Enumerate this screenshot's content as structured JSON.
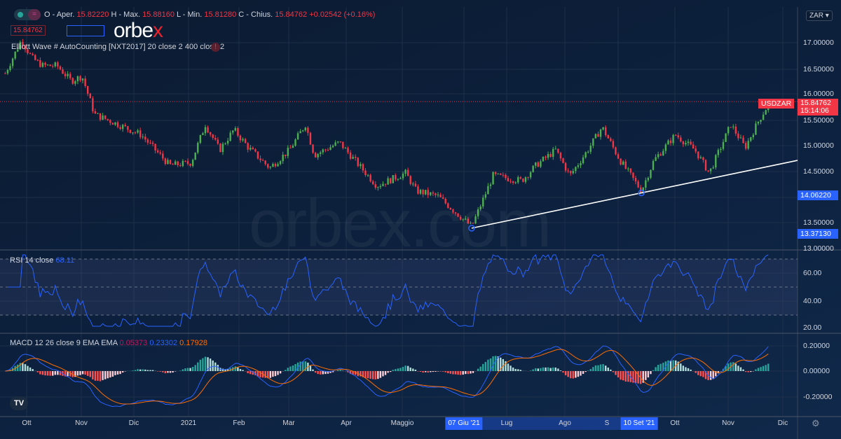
{
  "header": {
    "ohlc": {
      "o_label": "O - Aper.",
      "o": "15.82220",
      "h_label": "H - Max.",
      "h": "15.88160",
      "l_label": "L - Min.",
      "l": "15.81280",
      "c_label": "C - Chius.",
      "c": "15.84762",
      "change": "+0.02542 (+0.16%)"
    },
    "bid": "15.84762",
    "indicator": "Elliott Wave # AutoCounting [NXT2017] 20 close 2 400 close 2",
    "currency_select": "ZAR",
    "logo": "orbex",
    "watermark": "orbex.com"
  },
  "rsi": {
    "label": "RSI 14 close",
    "value": "68.11",
    "ticks": [
      "60.00",
      "40.00",
      "20.00"
    ],
    "levels": [
      70,
      50,
      30
    ]
  },
  "macd": {
    "label": "MACD 12 26 close 9 EMA EMA",
    "hist": "0.05373",
    "macd": "0.23302",
    "signal": "0.17928",
    "ticks": [
      "0.20000",
      "0.00000",
      "-0.20000"
    ]
  },
  "chart_data": {
    "type": "candlestick",
    "symbol": "USDZAR",
    "last_price": "15.84762",
    "countdown": "15:14:06",
    "marked_prices": [
      "14.06220",
      "13.37130"
    ],
    "y_ticks": [
      "17.00000",
      "16.50000",
      "16.00000",
      "15.50000",
      "15.00000",
      "14.50000",
      "13.50000",
      "13.00000"
    ],
    "ylim": [
      13.0,
      17.5
    ],
    "x_ticks": [
      "Ott",
      "Nov",
      "Dic",
      "2021",
      "Feb",
      "Mar",
      "Apr",
      "Maggio",
      "Lug",
      "Ago",
      "S",
      "Ott",
      "Nov",
      "Dic"
    ],
    "x_highlights": [
      "07 Giu '21",
      "10 Set '21"
    ],
    "close_path": [
      {
        "d": "2020-09-19",
        "p": 16.4
      },
      {
        "d": "2020-09-28",
        "p": 17.05
      },
      {
        "d": "2020-10-04",
        "p": 16.7
      },
      {
        "d": "2020-10-10",
        "p": 16.55
      },
      {
        "d": "2020-10-18",
        "p": 16.55
      },
      {
        "d": "2020-10-26",
        "p": 16.25
      },
      {
        "d": "2020-11-01",
        "p": 16.35
      },
      {
        "d": "2020-11-08",
        "p": 15.6
      },
      {
        "d": "2020-11-18",
        "p": 15.45
      },
      {
        "d": "2020-12-04",
        "p": 15.2
      },
      {
        "d": "2020-12-20",
        "p": 14.6
      },
      {
        "d": "2021-01-01",
        "p": 14.65
      },
      {
        "d": "2021-01-09",
        "p": 15.4
      },
      {
        "d": "2021-01-17",
        "p": 14.9
      },
      {
        "d": "2021-01-25",
        "p": 15.3
      },
      {
        "d": "2021-02-02",
        "p": 14.95
      },
      {
        "d": "2021-02-14",
        "p": 14.55
      },
      {
        "d": "2021-02-25",
        "p": 14.9
      },
      {
        "d": "2021-03-06",
        "p": 15.4
      },
      {
        "d": "2021-03-11",
        "p": 14.8
      },
      {
        "d": "2021-03-25",
        "p": 15.05
      },
      {
        "d": "2021-04-05",
        "p": 14.6
      },
      {
        "d": "2021-04-15",
        "p": 14.2
      },
      {
        "d": "2021-05-01",
        "p": 14.45
      },
      {
        "d": "2021-05-07",
        "p": 14.1
      },
      {
        "d": "2021-05-19",
        "p": 14.0
      },
      {
        "d": "2021-06-07",
        "p": 13.4
      },
      {
        "d": "2021-06-19",
        "p": 14.4
      },
      {
        "d": "2021-07-05",
        "p": 14.3
      },
      {
        "d": "2021-07-13",
        "p": 14.6
      },
      {
        "d": "2021-07-24",
        "p": 14.9
      },
      {
        "d": "2021-08-01",
        "p": 14.4
      },
      {
        "d": "2021-08-11",
        "p": 14.9
      },
      {
        "d": "2021-08-19",
        "p": 15.35
      },
      {
        "d": "2021-08-29",
        "p": 14.7
      },
      {
        "d": "2021-09-10",
        "p": 14.1
      },
      {
        "d": "2021-09-17",
        "p": 14.7
      },
      {
        "d": "2021-09-29",
        "p": 15.2
      },
      {
        "d": "2021-10-10",
        "p": 14.9
      },
      {
        "d": "2021-10-18",
        "p": 14.45
      },
      {
        "d": "2021-10-30",
        "p": 15.4
      },
      {
        "d": "2021-11-07",
        "p": 14.95
      },
      {
        "d": "2021-11-15",
        "p": 15.5
      },
      {
        "d": "2021-11-21",
        "p": 15.85
      }
    ],
    "trendline": [
      {
        "d": "2021-06-07",
        "p": 13.3713
      },
      {
        "d": "2021-09-10",
        "p": 14.0622
      }
    ],
    "colors": {
      "up": "#26a69a",
      "down": "#f23645",
      "candle_up": "#4caf50",
      "candle_down": "#f23645",
      "rsi": "#2962ff",
      "macd": "#2962ff",
      "signal": "#ff6d00",
      "trendline": "#ffffff"
    }
  }
}
